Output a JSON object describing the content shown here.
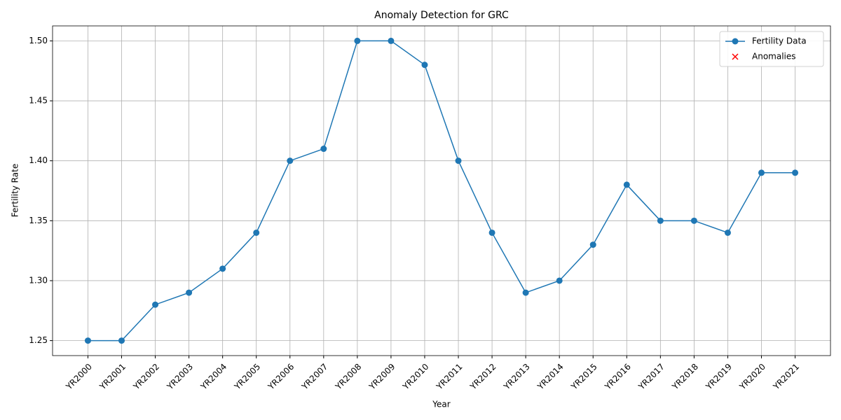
{
  "chart_data": {
    "type": "line",
    "title": "Anomaly Detection for GRC",
    "xlabel": "Year",
    "ylabel": "Fertility Rate",
    "categories": [
      "YR2000",
      "YR2001",
      "YR2002",
      "YR2003",
      "YR2004",
      "YR2005",
      "YR2006",
      "YR2007",
      "YR2008",
      "YR2009",
      "YR2010",
      "YR2011",
      "YR2012",
      "YR2013",
      "YR2014",
      "YR2015",
      "YR2016",
      "YR2017",
      "YR2018",
      "YR2019",
      "YR2020",
      "YR2021"
    ],
    "series": [
      {
        "name": "Fertility Data",
        "color": "#1f77b4",
        "marker": "o",
        "values": [
          1.25,
          1.25,
          1.28,
          1.29,
          1.31,
          1.34,
          1.4,
          1.41,
          1.5,
          1.5,
          1.48,
          1.4,
          1.34,
          1.29,
          1.3,
          1.33,
          1.38,
          1.35,
          1.35,
          1.34,
          1.39,
          1.39
        ]
      },
      {
        "name": "Anomalies",
        "color": "#ff0000",
        "marker": "x",
        "values": [
          null,
          null,
          null,
          null,
          null,
          null,
          null,
          null,
          null,
          null,
          null,
          null,
          null,
          null,
          null,
          null,
          null,
          null,
          null,
          null,
          null,
          null
        ]
      }
    ],
    "ylim": [
      1.2375,
      1.5125
    ],
    "yticks": [
      1.25,
      {
        "value": 1.3,
        "label": "1.30"
      },
      1.35,
      {
        "value": 1.4,
        "label": "1.40"
      },
      1.45,
      {
        "value": 1.5,
        "label": "1.50"
      }
    ],
    "grid": true,
    "legend": "upper right"
  }
}
